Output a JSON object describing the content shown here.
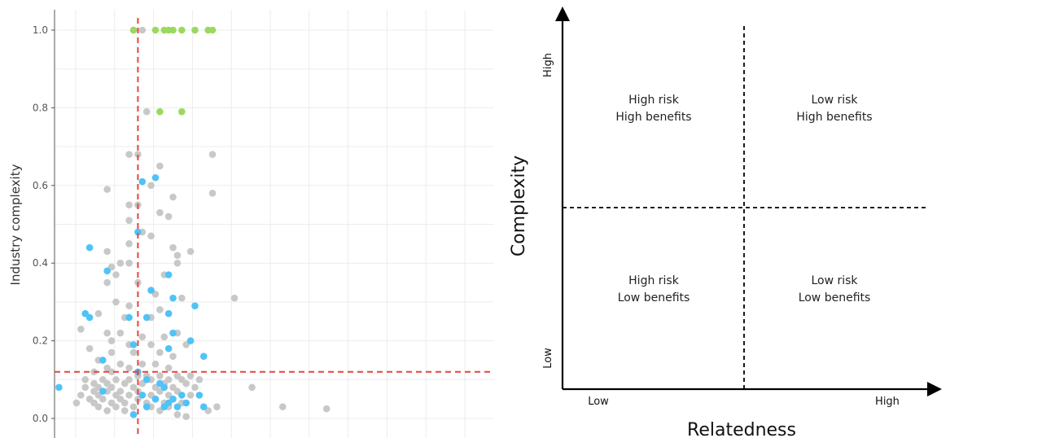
{
  "chart_data": [
    {
      "type": "scatter",
      "title": "",
      "xlabel": "",
      "ylabel": "Industry complexity",
      "xlim": [
        0,
        1
      ],
      "ylim": [
        -0.02,
        1.05
      ],
      "yticks": [
        "0.0",
        "0.2",
        "0.4",
        "0.6",
        "0.8",
        "1.0"
      ],
      "ytick_values": [
        0.0,
        0.2,
        0.4,
        0.6,
        0.8,
        1.0
      ],
      "reference_lines": {
        "x": 0.19,
        "y": 0.12
      },
      "colors": {
        "grey": "#c8c8c8",
        "blue": "#4fc3f7",
        "green": "#9ad95e",
        "ref": "#e8423f"
      },
      "series": [
        {
          "name": "green",
          "points": [
            [
              0.18,
              1.0
            ],
            [
              0.23,
              1.0
            ],
            [
              0.25,
              1.0
            ],
            [
              0.26,
              1.0
            ],
            [
              0.27,
              1.0
            ],
            [
              0.29,
              1.0
            ],
            [
              0.32,
              1.0
            ],
            [
              0.35,
              1.0
            ],
            [
              0.36,
              1.0
            ],
            [
              0.24,
              0.79
            ],
            [
              0.29,
              0.79
            ]
          ]
        },
        {
          "name": "blue",
          "points": [
            [
              0.2,
              0.61
            ],
            [
              0.23,
              0.62
            ],
            [
              0.19,
              0.48
            ],
            [
              0.08,
              0.44
            ],
            [
              0.12,
              0.38
            ],
            [
              0.22,
              0.33
            ],
            [
              0.26,
              0.37
            ],
            [
              0.27,
              0.31
            ],
            [
              0.32,
              0.29
            ],
            [
              0.07,
              0.27
            ],
            [
              0.08,
              0.26
            ],
            [
              0.17,
              0.26
            ],
            [
              0.21,
              0.26
            ],
            [
              0.26,
              0.27
            ],
            [
              0.27,
              0.22
            ],
            [
              0.31,
              0.2
            ],
            [
              0.26,
              0.18
            ],
            [
              0.34,
              0.16
            ],
            [
              0.18,
              0.19
            ],
            [
              0.11,
              0.15
            ],
            [
              0.19,
              0.12
            ],
            [
              0.21,
              0.1
            ],
            [
              0.24,
              0.09
            ],
            [
              0.25,
              0.08
            ],
            [
              0.01,
              0.08
            ],
            [
              0.11,
              0.07
            ],
            [
              0.2,
              0.06
            ],
            [
              0.29,
              0.06
            ],
            [
              0.33,
              0.06
            ],
            [
              0.23,
              0.05
            ],
            [
              0.27,
              0.05
            ],
            [
              0.3,
              0.04
            ],
            [
              0.21,
              0.03
            ],
            [
              0.25,
              0.03
            ],
            [
              0.26,
              0.04
            ],
            [
              0.34,
              0.03
            ],
            [
              0.28,
              0.03
            ],
            [
              0.18,
              0.01
            ]
          ]
        },
        {
          "name": "grey",
          "points": [
            [
              0.18,
              1.0
            ],
            [
              0.2,
              1.0
            ],
            [
              0.21,
              0.79
            ],
            [
              0.17,
              0.68
            ],
            [
              0.19,
              0.68
            ],
            [
              0.36,
              0.68
            ],
            [
              0.24,
              0.65
            ],
            [
              0.22,
              0.6
            ],
            [
              0.12,
              0.59
            ],
            [
              0.36,
              0.58
            ],
            [
              0.27,
              0.57
            ],
            [
              0.17,
              0.55
            ],
            [
              0.19,
              0.55
            ],
            [
              0.24,
              0.53
            ],
            [
              0.17,
              0.51
            ],
            [
              0.26,
              0.52
            ],
            [
              0.2,
              0.48
            ],
            [
              0.22,
              0.47
            ],
            [
              0.17,
              0.45
            ],
            [
              0.27,
              0.44
            ],
            [
              0.12,
              0.43
            ],
            [
              0.28,
              0.42
            ],
            [
              0.31,
              0.43
            ],
            [
              0.15,
              0.4
            ],
            [
              0.17,
              0.4
            ],
            [
              0.28,
              0.4
            ],
            [
              0.13,
              0.39
            ],
            [
              0.25,
              0.37
            ],
            [
              0.14,
              0.37
            ],
            [
              0.19,
              0.35
            ],
            [
              0.12,
              0.35
            ],
            [
              0.23,
              0.32
            ],
            [
              0.29,
              0.31
            ],
            [
              0.41,
              0.31
            ],
            [
              0.14,
              0.3
            ],
            [
              0.17,
              0.29
            ],
            [
              0.24,
              0.28
            ],
            [
              0.1,
              0.27
            ],
            [
              0.16,
              0.26
            ],
            [
              0.22,
              0.26
            ],
            [
              0.06,
              0.23
            ],
            [
              0.12,
              0.22
            ],
            [
              0.15,
              0.22
            ],
            [
              0.2,
              0.21
            ],
            [
              0.25,
              0.21
            ],
            [
              0.28,
              0.22
            ],
            [
              0.13,
              0.2
            ],
            [
              0.17,
              0.19
            ],
            [
              0.22,
              0.19
            ],
            [
              0.3,
              0.19
            ],
            [
              0.08,
              0.18
            ],
            [
              0.13,
              0.17
            ],
            [
              0.18,
              0.17
            ],
            [
              0.24,
              0.17
            ],
            [
              0.27,
              0.16
            ],
            [
              0.1,
              0.15
            ],
            [
              0.15,
              0.14
            ],
            [
              0.2,
              0.14
            ],
            [
              0.23,
              0.14
            ],
            [
              0.12,
              0.13
            ],
            [
              0.17,
              0.13
            ],
            [
              0.26,
              0.13
            ],
            [
              0.09,
              0.12
            ],
            [
              0.13,
              0.12
            ],
            [
              0.19,
              0.11
            ],
            [
              0.21,
              0.11
            ],
            [
              0.24,
              0.11
            ],
            [
              0.28,
              0.11
            ],
            [
              0.31,
              0.11
            ],
            [
              0.07,
              0.1
            ],
            [
              0.11,
              0.1
            ],
            [
              0.14,
              0.1
            ],
            [
              0.17,
              0.1
            ],
            [
              0.22,
              0.1
            ],
            [
              0.26,
              0.1
            ],
            [
              0.29,
              0.1
            ],
            [
              0.33,
              0.1
            ],
            [
              0.09,
              0.09
            ],
            [
              0.12,
              0.09
            ],
            [
              0.16,
              0.09
            ],
            [
              0.2,
              0.09
            ],
            [
              0.25,
              0.09
            ],
            [
              0.3,
              0.09
            ],
            [
              0.07,
              0.08
            ],
            [
              0.1,
              0.08
            ],
            [
              0.13,
              0.08
            ],
            [
              0.18,
              0.08
            ],
            [
              0.23,
              0.08
            ],
            [
              0.27,
              0.08
            ],
            [
              0.32,
              0.08
            ],
            [
              0.45,
              0.08
            ],
            [
              0.09,
              0.07
            ],
            [
              0.12,
              0.07
            ],
            [
              0.15,
              0.07
            ],
            [
              0.19,
              0.07
            ],
            [
              0.24,
              0.07
            ],
            [
              0.28,
              0.07
            ],
            [
              0.06,
              0.06
            ],
            [
              0.1,
              0.06
            ],
            [
              0.14,
              0.06
            ],
            [
              0.17,
              0.06
            ],
            [
              0.22,
              0.06
            ],
            [
              0.26,
              0.06
            ],
            [
              0.31,
              0.06
            ],
            [
              0.08,
              0.05
            ],
            [
              0.11,
              0.05
            ],
            [
              0.15,
              0.05
            ],
            [
              0.19,
              0.05
            ],
            [
              0.23,
              0.05
            ],
            [
              0.27,
              0.05
            ],
            [
              0.05,
              0.04
            ],
            [
              0.09,
              0.04
            ],
            [
              0.13,
              0.04
            ],
            [
              0.16,
              0.04
            ],
            [
              0.21,
              0.04
            ],
            [
              0.25,
              0.04
            ],
            [
              0.29,
              0.04
            ],
            [
              0.1,
              0.03
            ],
            [
              0.14,
              0.03
            ],
            [
              0.18,
              0.03
            ],
            [
              0.22,
              0.03
            ],
            [
              0.26,
              0.03
            ],
            [
              0.37,
              0.03
            ],
            [
              0.52,
              0.03
            ],
            [
              0.62,
              0.025
            ],
            [
              0.12,
              0.02
            ],
            [
              0.16,
              0.02
            ],
            [
              0.24,
              0.02
            ],
            [
              0.28,
              0.01
            ],
            [
              0.35,
              0.02
            ],
            [
              0.3,
              0.005
            ]
          ]
        }
      ]
    },
    {
      "type": "quadrant",
      "xlabel": "Relatedness",
      "ylabel": "Complexity",
      "x_low_label": "Low",
      "x_high_label": "High",
      "y_low_label": "Low",
      "y_high_label": "High",
      "quadrants": {
        "top_left": [
          "High risk",
          "High benefits"
        ],
        "top_right": [
          "Low risk",
          "High benefits"
        ],
        "bottom_left": [
          "High risk",
          "Low benefits"
        ],
        "bottom_right": [
          "Low risk",
          "Low benefits"
        ]
      }
    }
  ]
}
